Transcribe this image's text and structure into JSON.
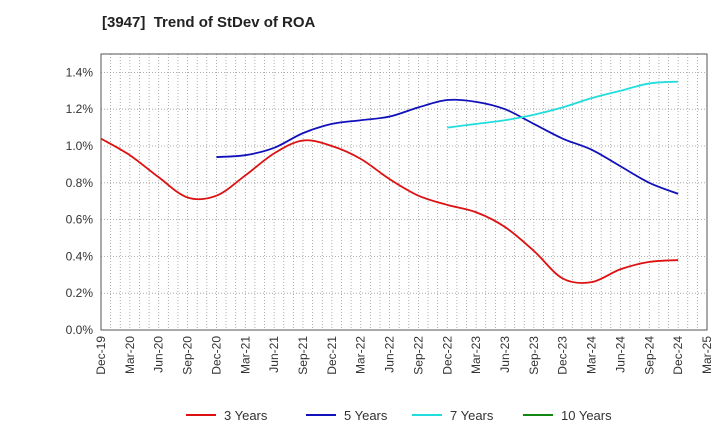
{
  "chart_data": {
    "type": "line",
    "title": "[3947]  Trend of StDev of ROA",
    "xlabel": "",
    "ylabel": "",
    "x_ticks": [
      "Dec-19",
      "Mar-20",
      "Jun-20",
      "Sep-20",
      "Dec-20",
      "Mar-21",
      "Jun-21",
      "Sep-21",
      "Dec-21",
      "Mar-22",
      "Jun-22",
      "Sep-22",
      "Dec-22",
      "Mar-23",
      "Jun-23",
      "Sep-23",
      "Dec-23",
      "Mar-24",
      "Jun-24",
      "Sep-24",
      "Dec-24",
      "Mar-25"
    ],
    "y_ticks": [
      "0.0%",
      "0.2%",
      "0.4%",
      "0.6%",
      "0.8%",
      "1.0%",
      "1.2%",
      "1.4%"
    ],
    "ylim": [
      0,
      1.5
    ],
    "y_unit": "%",
    "grid": true,
    "legend_position": "bottom",
    "series": [
      {
        "name": "3 Years",
        "color": "#dd1111",
        "values": [
          1.04,
          0.95,
          0.83,
          0.72,
          0.73,
          0.84,
          0.96,
          1.03,
          1.0,
          0.93,
          0.82,
          0.73,
          0.68,
          0.64,
          0.56,
          0.43,
          0.28,
          0.26,
          0.33,
          0.37,
          0.38,
          null
        ]
      },
      {
        "name": "5 Years",
        "color": "#1111bb",
        "values": [
          null,
          null,
          null,
          null,
          0.94,
          0.95,
          0.99,
          1.07,
          1.12,
          1.14,
          1.16,
          1.21,
          1.25,
          1.24,
          1.2,
          1.12,
          1.04,
          0.98,
          0.89,
          0.8,
          0.74,
          null
        ]
      },
      {
        "name": "7 Years",
        "color": "#22dddd",
        "values": [
          null,
          null,
          null,
          null,
          null,
          null,
          null,
          null,
          null,
          null,
          null,
          null,
          1.1,
          1.12,
          1.14,
          1.17,
          1.21,
          1.26,
          1.3,
          1.34,
          1.35,
          null
        ]
      },
      {
        "name": "10 Years",
        "color": "#118811",
        "values": [
          null,
          null,
          null,
          null,
          null,
          null,
          null,
          null,
          null,
          null,
          null,
          null,
          null,
          null,
          null,
          null,
          null,
          null,
          null,
          null,
          null,
          null
        ]
      }
    ]
  }
}
